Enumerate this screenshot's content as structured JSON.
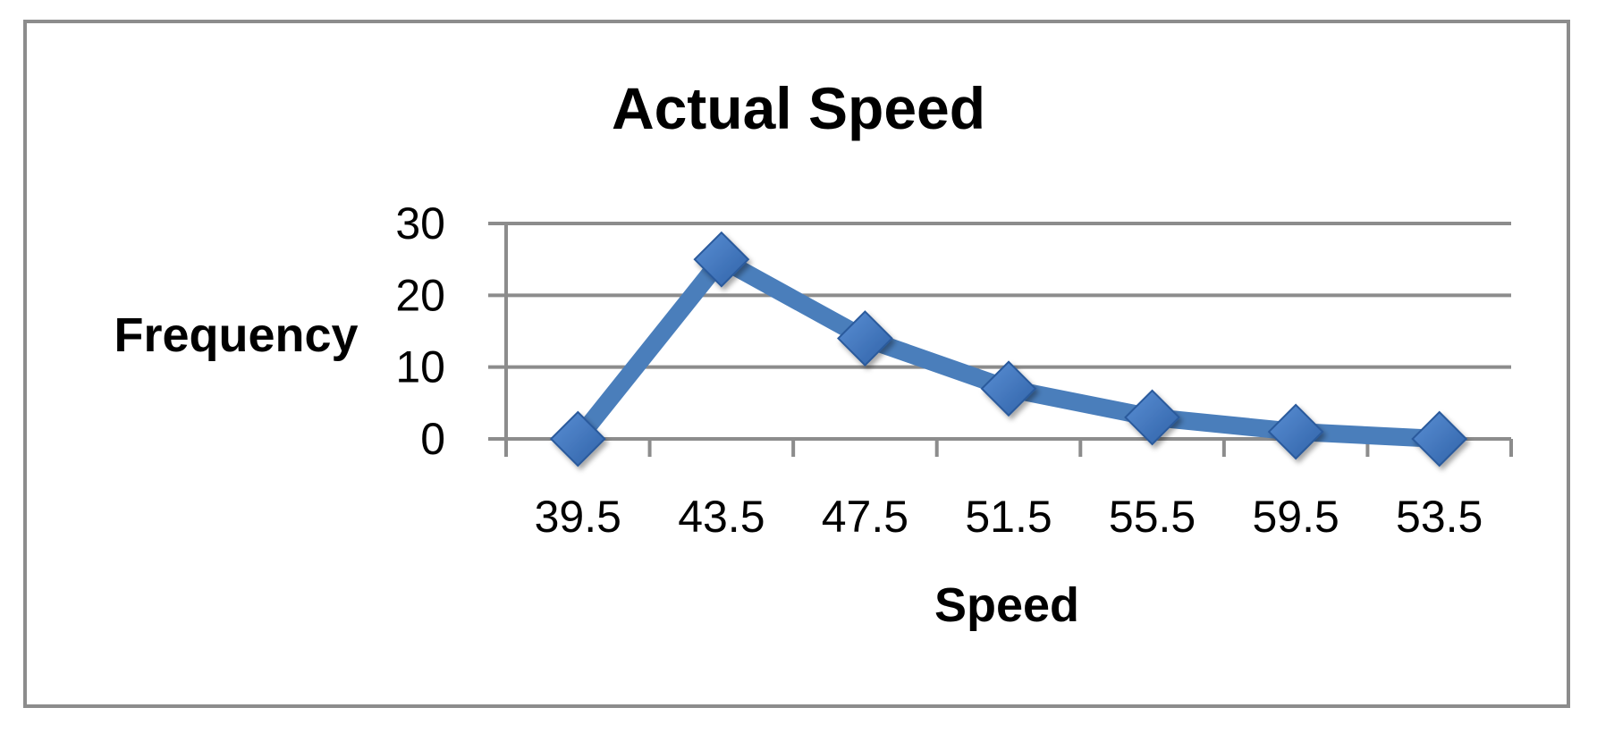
{
  "chart_data": {
    "type": "line",
    "title": "Actual Speed",
    "xlabel": "Speed",
    "ylabel": "Frequency",
    "categories": [
      "39.5",
      "43.5",
      "47.5",
      "51.5",
      "55.5",
      "59.5",
      "53.5"
    ],
    "series": [
      {
        "values": [
          0,
          25,
          14,
          7,
          3,
          1,
          0
        ]
      }
    ],
    "ylim": [
      0,
      30
    ],
    "yticks": [
      0,
      10,
      20,
      30
    ],
    "grid": true,
    "colors": {
      "series": "#4a7ebb",
      "grid": "#8c8c8c",
      "frame": "#8c8c8c"
    }
  }
}
